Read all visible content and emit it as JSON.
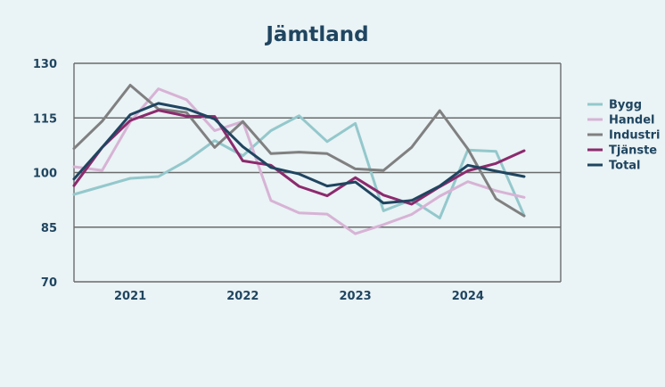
{
  "chart_data": {
    "type": "line",
    "title": "Jämtland",
    "xlabel": "",
    "ylabel": "",
    "ylim": [
      70,
      130
    ],
    "yticks": [
      70,
      85,
      100,
      115,
      130
    ],
    "xlim": [
      0,
      17.3
    ],
    "xtick_labels": [
      {
        "label": "2021",
        "x": 2.0
      },
      {
        "label": "2022",
        "x": 6.0
      },
      {
        "label": "2023",
        "x": 10.0
      },
      {
        "label": "2024",
        "x": 14.0
      }
    ],
    "grid": "horizontal",
    "legend_position": "right",
    "series": [
      {
        "name": "Bygg",
        "color": "#93c8cc",
        "values": [
          94.0,
          96.2,
          98.4,
          98.9,
          103.2,
          108.8,
          104.6,
          111.5,
          115.6,
          108.5,
          113.5,
          89.5,
          92.5,
          87.5,
          106.2,
          105.8,
          88.2
        ]
      },
      {
        "name": "Handel",
        "color": "#d7b3d5",
        "values": [
          101.6,
          100.6,
          113.9,
          123.0,
          120.0,
          111.5,
          114.0,
          92.3,
          88.9,
          88.6,
          83.2,
          85.7,
          88.5,
          93.5,
          97.5,
          95.0,
          93.2
        ]
      },
      {
        "name": "Industri",
        "color": "#808080",
        "values": [
          106.6,
          114.1,
          124.0,
          117.4,
          116.5,
          106.9,
          114.0,
          105.2,
          105.6,
          105.2,
          101.0,
          100.6,
          106.9,
          117.0,
          106.5,
          92.8,
          88.1
        ]
      },
      {
        "name": "Tjänste",
        "color": "#8c2a6d",
        "values": [
          96.4,
          106.9,
          114.3,
          117.1,
          115.5,
          115.4,
          103.2,
          102.0,
          96.2,
          93.6,
          98.6,
          93.8,
          91.3,
          96.1,
          100.5,
          102.5,
          106.0
        ]
      },
      {
        "name": "Total",
        "color": "#1f4560",
        "values": [
          98.2,
          106.9,
          115.9,
          119.0,
          117.5,
          114.7,
          107.1,
          101.4,
          99.6,
          96.3,
          97.4,
          91.6,
          92.3,
          96.3,
          102.0,
          100.4,
          98.9
        ]
      }
    ]
  }
}
